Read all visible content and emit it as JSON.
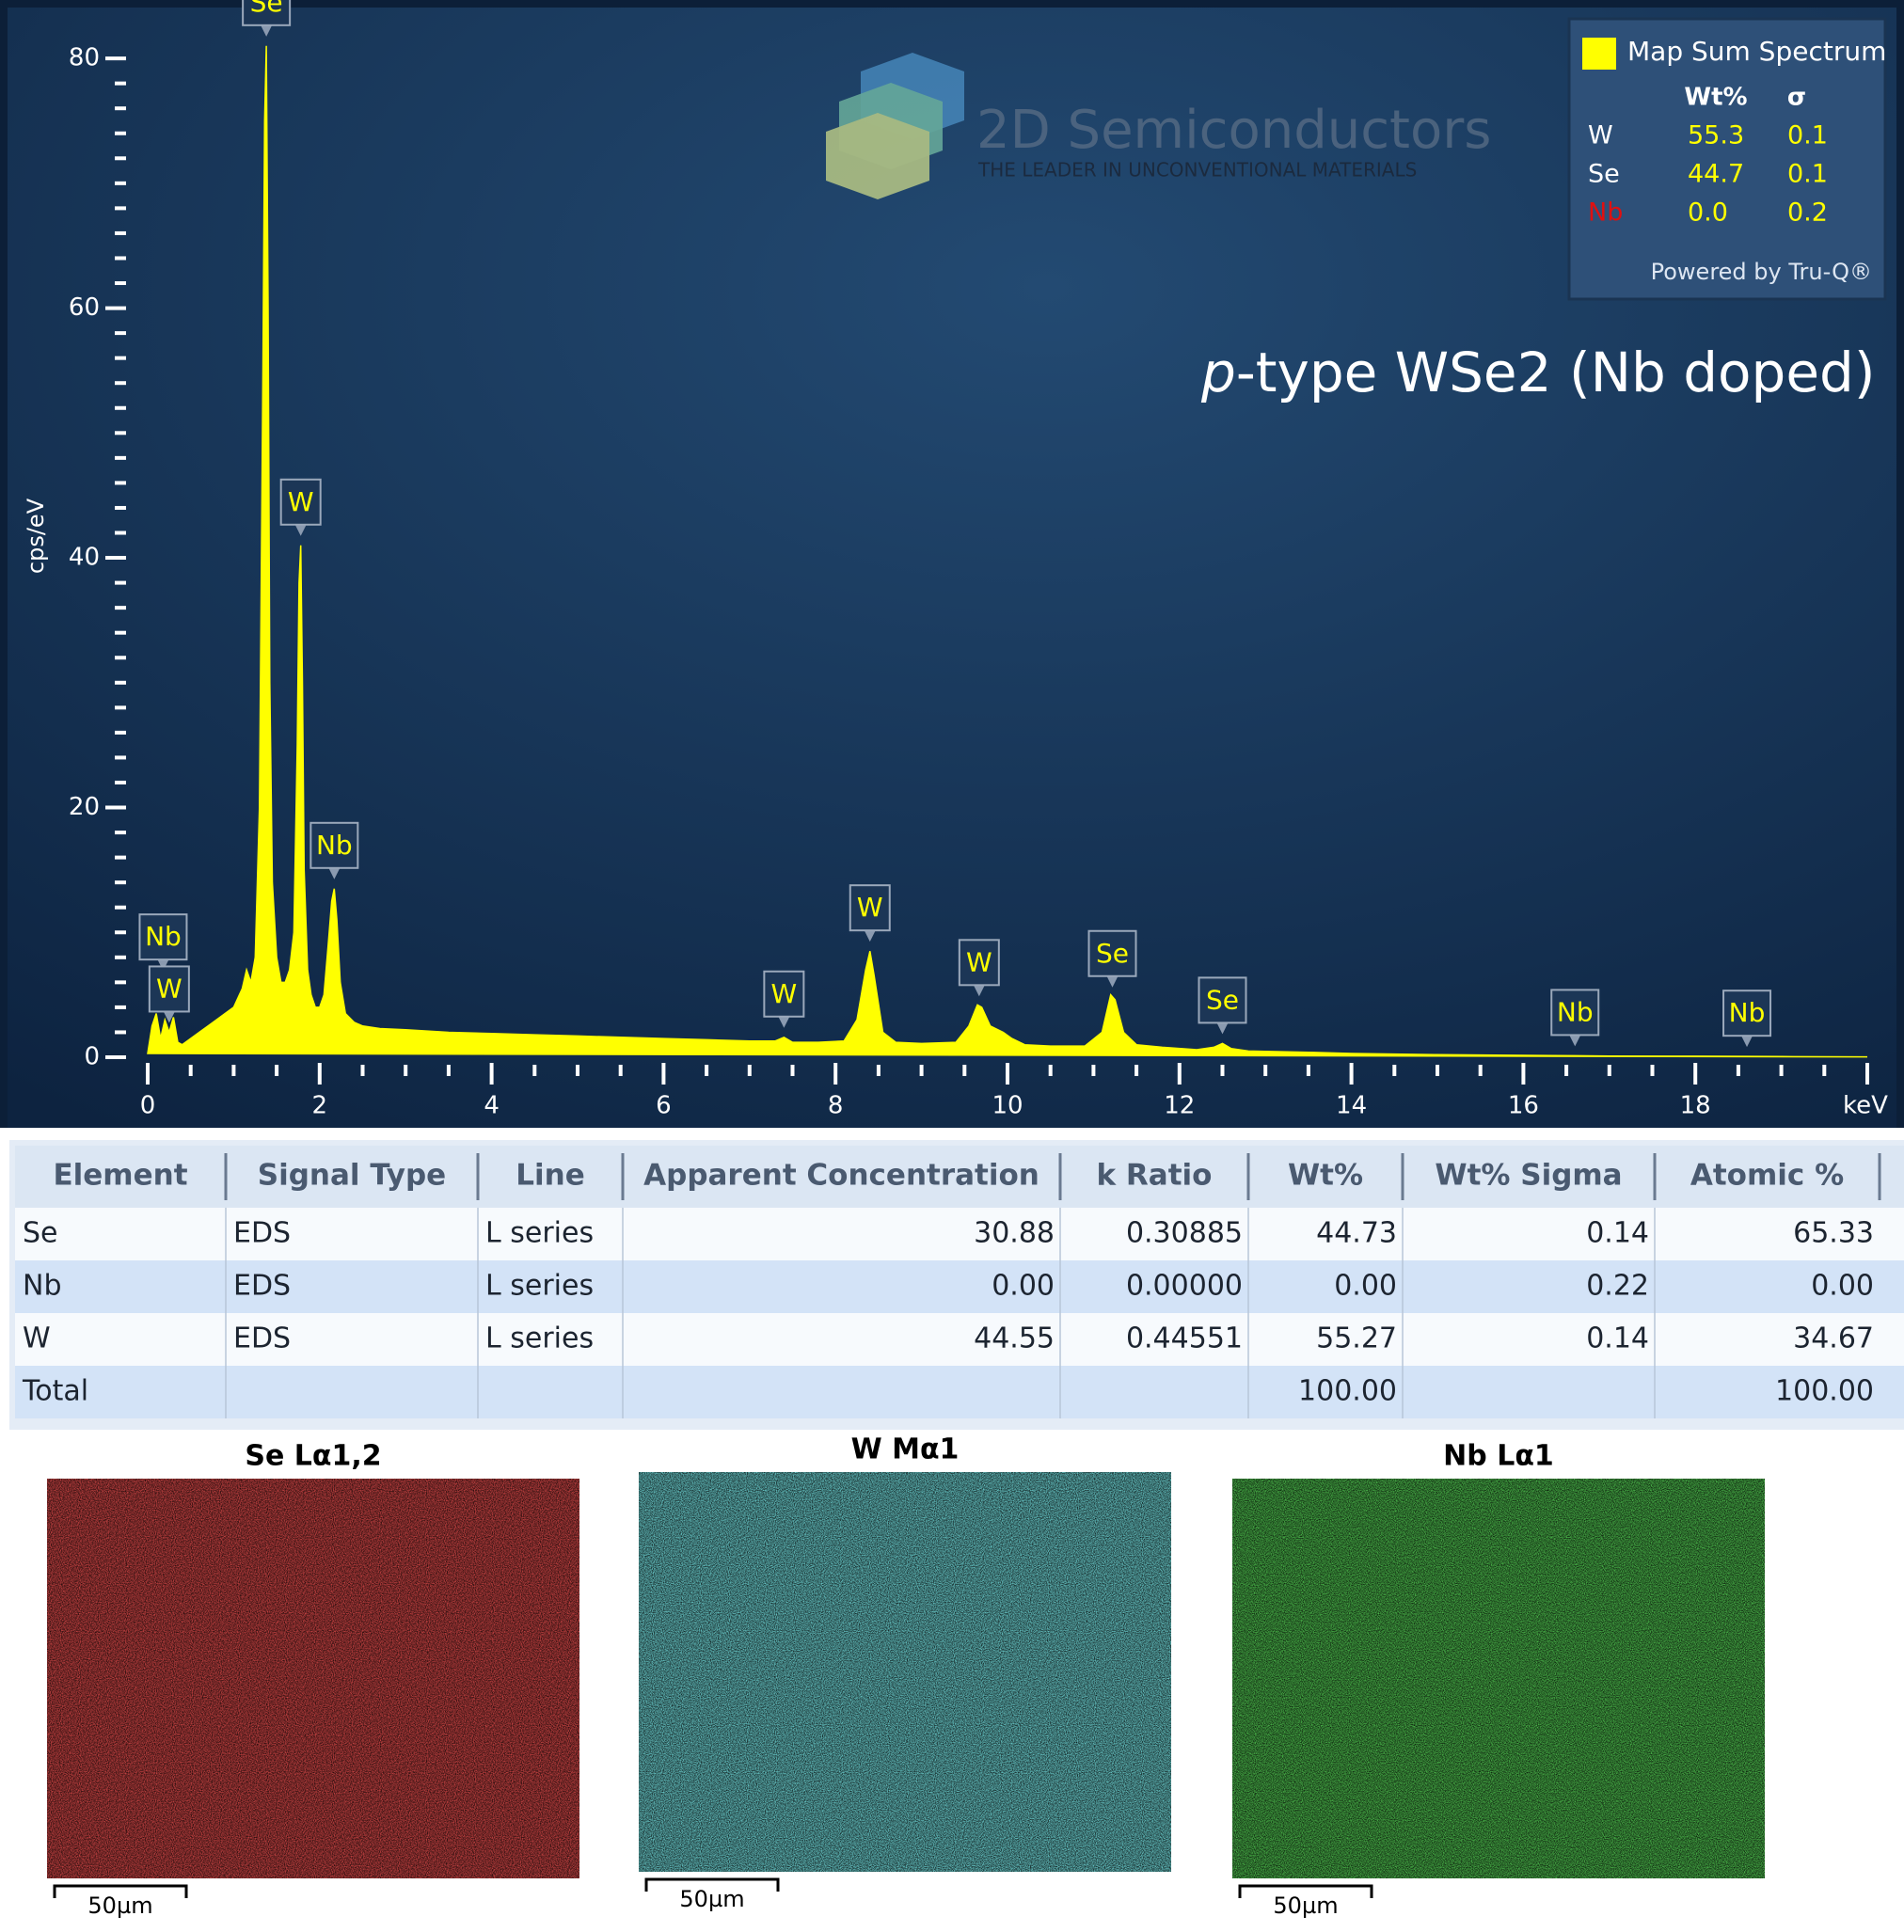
{
  "chart_data": {
    "type": "area",
    "title": [
      "p",
      "-type WSe2 (Nb doped)"
    ],
    "x_label": "keV",
    "y_label": "cps/eV",
    "color": "#ffff00",
    "xlim": [
      0,
      20
    ],
    "xticks": [
      0,
      2,
      4,
      6,
      8,
      10,
      12,
      14,
      16,
      18
    ],
    "ylim": [
      0,
      84
    ],
    "yticks": [
      0,
      20,
      40,
      60,
      80
    ],
    "x": [
      0.0,
      0.05,
      0.1,
      0.15,
      0.2,
      0.25,
      0.3,
      0.35,
      0.4,
      0.5,
      0.6,
      0.7,
      0.8,
      0.9,
      1.0,
      1.1,
      1.15,
      1.2,
      1.25,
      1.3,
      1.34,
      1.36,
      1.38,
      1.4,
      1.42,
      1.45,
      1.5,
      1.55,
      1.6,
      1.65,
      1.7,
      1.74,
      1.76,
      1.78,
      1.8,
      1.82,
      1.86,
      1.9,
      1.95,
      2.0,
      2.05,
      2.1,
      2.14,
      2.17,
      2.2,
      2.24,
      2.3,
      2.4,
      2.5,
      2.7,
      3.0,
      3.5,
      4.0,
      4.5,
      5.0,
      5.5,
      6.0,
      6.5,
      7.0,
      7.3,
      7.4,
      7.5,
      7.8,
      8.1,
      8.25,
      8.35,
      8.4,
      8.45,
      8.55,
      8.7,
      9.0,
      9.4,
      9.55,
      9.65,
      9.7,
      9.8,
      9.95,
      10.05,
      10.2,
      10.5,
      10.9,
      11.1,
      11.2,
      11.25,
      11.35,
      11.5,
      11.8,
      12.2,
      12.4,
      12.5,
      12.6,
      12.8,
      13.5,
      14.0,
      15.0,
      16.0,
      16.6,
      17.0,
      18.0,
      19.0,
      20.0
    ],
    "values": [
      0.3,
      2.5,
      3.5,
      1.5,
      3.0,
      2.0,
      3.2,
      1.2,
      1.0,
      1.5,
      2.0,
      2.5,
      3.0,
      3.5,
      4.0,
      5.5,
      7.0,
      6.0,
      8.0,
      20,
      55,
      75,
      81,
      60,
      30,
      14,
      8,
      6,
      6,
      7,
      10,
      25,
      38,
      41,
      30,
      15,
      7,
      5,
      4,
      4,
      5,
      9,
      12.5,
      13.5,
      11,
      6,
      3.5,
      2.8,
      2.5,
      2.3,
      2.2,
      2.0,
      1.9,
      1.8,
      1.7,
      1.6,
      1.5,
      1.4,
      1.3,
      1.3,
      1.6,
      1.2,
      1.2,
      1.3,
      3,
      7,
      8.5,
      6.5,
      2,
      1.2,
      1.1,
      1.2,
      2.5,
      4.2,
      4.0,
      2.5,
      2.0,
      1.5,
      1.0,
      0.9,
      0.9,
      2,
      5,
      4.6,
      2,
      1.0,
      0.8,
      0.6,
      0.8,
      1.1,
      0.7,
      0.5,
      0.4,
      0.3,
      0.2,
      0.15,
      0.12,
      0.1,
      0.08,
      0.05,
      0.03
    ],
    "annotations": [
      {
        "label": "Nb",
        "x": 0.18
      },
      {
        "label": "W",
        "x": 0.25
      },
      {
        "label": "Se",
        "x": 1.38
      },
      {
        "label": "W",
        "x": 1.78
      },
      {
        "label": "Nb",
        "x": 2.17
      },
      {
        "label": "W",
        "x": 7.4
      },
      {
        "label": "W",
        "x": 8.4
      },
      {
        "label": "W",
        "x": 9.67
      },
      {
        "label": "Se",
        "x": 11.22
      },
      {
        "label": "Se",
        "x": 12.5
      },
      {
        "label": "Nb",
        "x": 16.6
      },
      {
        "label": "Nb",
        "x": 18.6
      }
    ],
    "legend": {
      "title": "Map Sum Spectrum",
      "columns": [
        "Wt%",
        "σ"
      ],
      "rows": [
        [
          "W",
          "55.3",
          "0.1"
        ],
        [
          "Se",
          "44.7",
          "0.1"
        ],
        [
          "Nb",
          "0.0",
          "0.2"
        ]
      ],
      "name_colors": [
        "#ffffff",
        "#ffffff",
        "#e01010"
      ],
      "footer": "Powered by Tru-Q®"
    }
  },
  "logo": {
    "name": "2D Semiconductors",
    "tagline": "THE LEADER IN UNCONVENTIONAL MATERIALS"
  },
  "table": {
    "columns": [
      "Element",
      "Signal Type",
      "Line",
      "Apparent Concentration",
      "k Ratio",
      "Wt%",
      "Wt% Sigma",
      "Atomic %"
    ],
    "rows": [
      [
        "Se",
        "EDS",
        "L series",
        "30.88",
        "0.30885",
        "44.73",
        "0.14",
        "65.33"
      ],
      [
        "Nb",
        "EDS",
        "L series",
        "0.00",
        "0.00000",
        "0.00",
        "0.22",
        "0.00"
      ],
      [
        "W",
        "EDS",
        "L series",
        "44.55",
        "0.44551",
        "55.27",
        "0.14",
        "34.67"
      ],
      [
        "Total",
        null,
        null,
        null,
        null,
        "100.00",
        null,
        "100.00"
      ]
    ]
  },
  "maps": [
    {
      "title": "Se Lα1,2",
      "scale": "50µm",
      "color": "#c81414"
    },
    {
      "title": "W Mα1",
      "scale": "50µm",
      "color": "#2cc8c8"
    },
    {
      "title": "Nb Lα1",
      "scale": "50µm",
      "color": "#1ea01e"
    }
  ]
}
